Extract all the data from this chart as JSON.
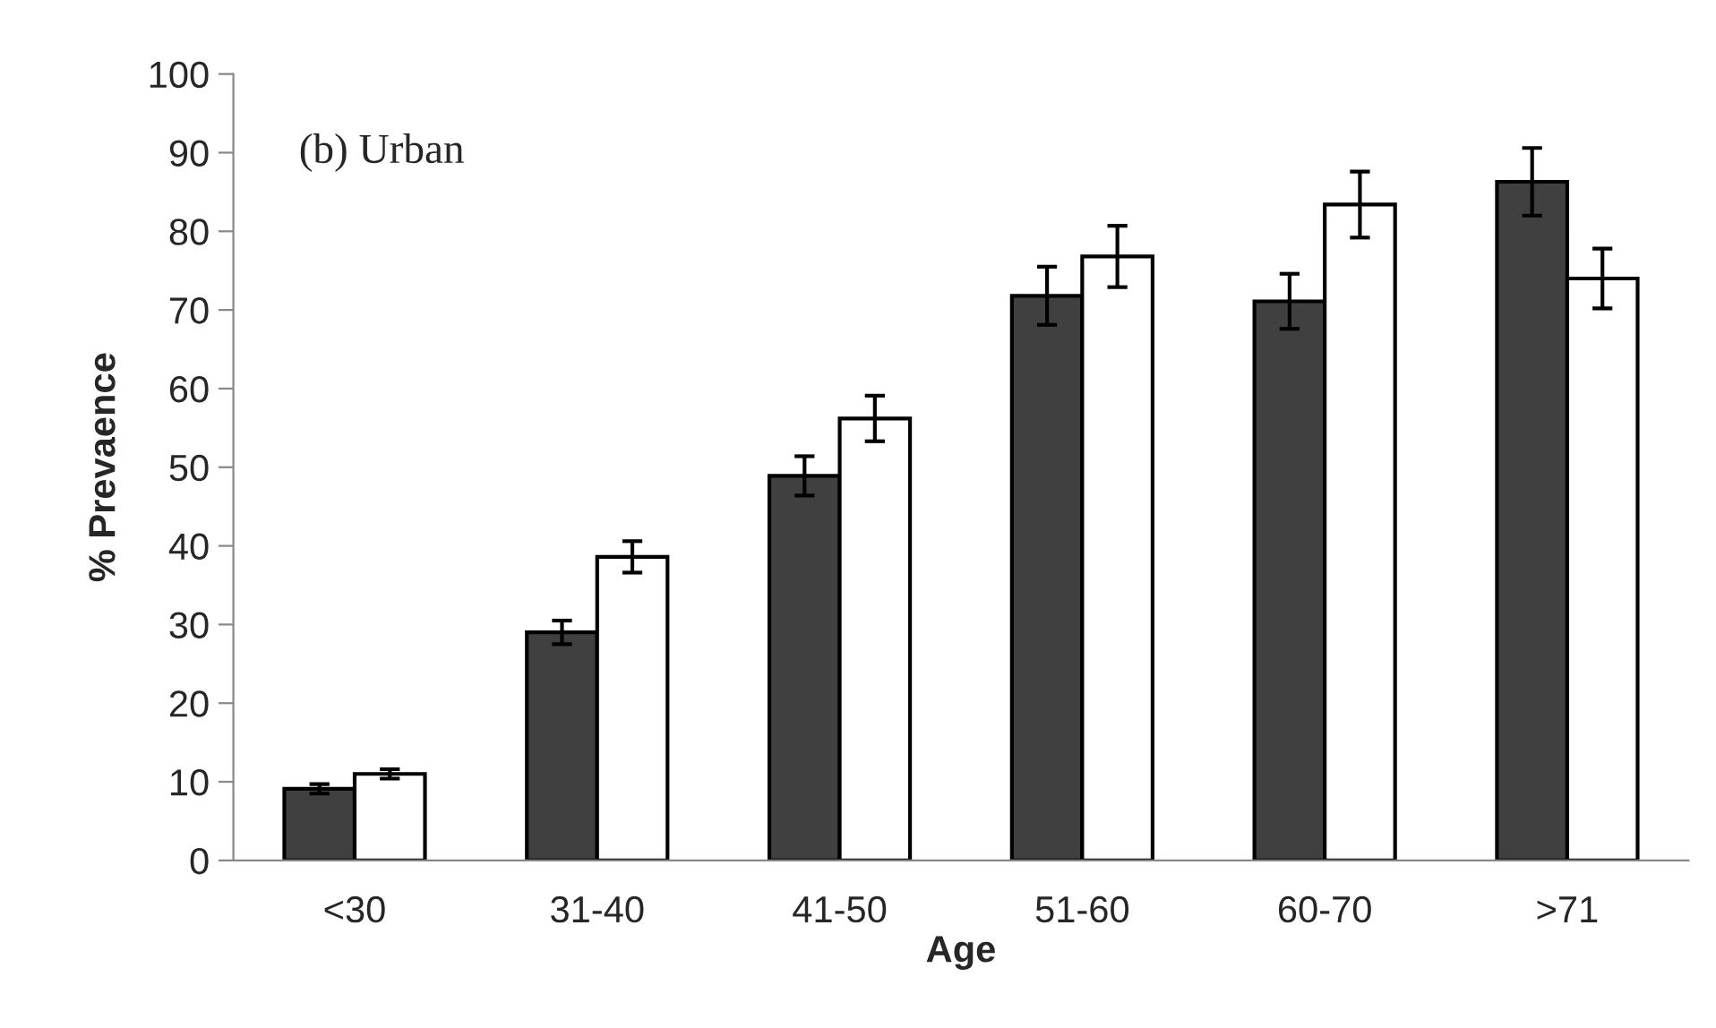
{
  "chart_data": {
    "type": "bar",
    "xlabel": "Age",
    "ylabel": "% Prevaence",
    "annotations": [
      "(b) Urban"
    ],
    "categories": [
      "<30",
      "31-40",
      "41-50",
      "51-60",
      "60-70",
      ">71"
    ],
    "series": [
      {
        "color": "#404040",
        "values": [
          9.1,
          29.0,
          48.9,
          71.8,
          71.1,
          86.3
        ],
        "errors": [
          0.6,
          1.5,
          2.5,
          3.7,
          3.5,
          4.3
        ]
      },
      {
        "color": "#ffffff",
        "values": [
          11.0,
          38.6,
          56.2,
          76.8,
          83.4,
          74.0
        ],
        "errors": [
          0.6,
          2.0,
          2.9,
          3.9,
          4.2,
          3.8
        ]
      }
    ],
    "ylim": [
      0,
      100
    ],
    "yticks": [
      0,
      10,
      20,
      30,
      40,
      50,
      60,
      70,
      80,
      90,
      100
    ],
    "grid": false
  }
}
